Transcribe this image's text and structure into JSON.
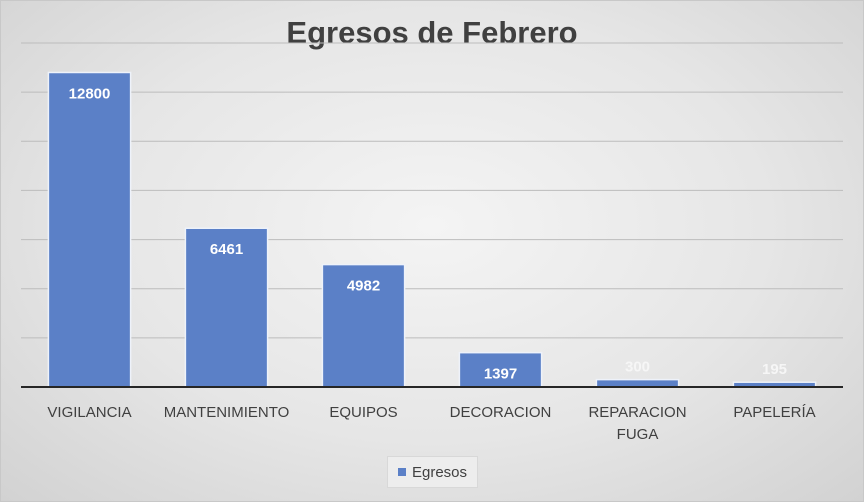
{
  "chart_data": {
    "type": "bar",
    "title": "Egresos de Febrero",
    "categories": [
      "VIGILANCIA",
      "MANTENIMIENTO",
      "EQUIPOS",
      "DECORACION",
      "REPARACION FUGA",
      "PAPELERÍA"
    ],
    "series": [
      {
        "name": "Egresos",
        "values": [
          12800,
          6461,
          4982,
          1397,
          300,
          195
        ]
      }
    ],
    "xlabel": "",
    "ylabel": "",
    "ylim": [
      0,
      14000
    ],
    "grid": true,
    "legend": "bottom",
    "bar_color": "#5b80c7",
    "bar_edge_color": "#eef2fa",
    "label_color_inside": "#ffffff",
    "label_color_outside": "#f6f6f6"
  }
}
